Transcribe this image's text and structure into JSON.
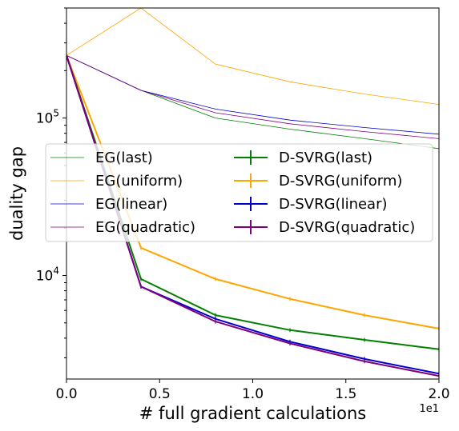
{
  "chart_data": {
    "type": "line",
    "xlabel": "# full gradient calculations",
    "ylabel": "duality gap",
    "x_multiplier_label": "1e1",
    "xlim": [
      0.0,
      2.0
    ],
    "ylim": [
      2200,
      500000
    ],
    "yscale": "log",
    "xticks": [
      0.0,
      0.5,
      1.0,
      1.5,
      2.0
    ],
    "xtick_labels": [
      "0.0",
      "0.5",
      "1.0",
      "1.5",
      "2.0"
    ],
    "yticks": [
      10000,
      100000
    ],
    "ytick_labels": [
      "10^4",
      "10^5"
    ],
    "x": [
      0.0,
      0.4,
      0.8,
      1.2,
      1.6,
      2.0
    ],
    "legend_position": "center-left",
    "legend_columns": 2,
    "series": [
      {
        "name": "EG(last)",
        "color": "#008000",
        "style": "thin",
        "values": [
          250000,
          150000,
          100000,
          85000,
          74000,
          64000
        ]
      },
      {
        "name": "EG(uniform)",
        "color": "#FFA500",
        "style": "thin",
        "values": [
          250000,
          500000,
          220000,
          170000,
          142000,
          122000
        ]
      },
      {
        "name": "EG(linear)",
        "color": "#0000CD",
        "style": "thin",
        "values": [
          250000,
          150000,
          114000,
          97000,
          87000,
          79000
        ]
      },
      {
        "name": "EG(quadratic)",
        "color": "#800080",
        "style": "thin",
        "values": [
          250000,
          150000,
          108000,
          92000,
          82000,
          74000
        ]
      },
      {
        "name": "D-SVRG(last)",
        "color": "#008000",
        "style": "errorbar",
        "values": [
          250000,
          9500,
          5600,
          4500,
          3900,
          3400
        ]
      },
      {
        "name": "D-SVRG(uniform)",
        "color": "#FFA500",
        "style": "errorbar",
        "values": [
          250000,
          15000,
          9500,
          7100,
          5600,
          4600
        ]
      },
      {
        "name": "D-SVRG(linear)",
        "color": "#0000CD",
        "style": "errorbar",
        "values": [
          250000,
          8500,
          5300,
          3800,
          2950,
          2380
        ]
      },
      {
        "name": "D-SVRG(quadratic)",
        "color": "#800080",
        "style": "errorbar",
        "values": [
          250000,
          8500,
          5100,
          3700,
          2850,
          2300
        ]
      }
    ]
  }
}
